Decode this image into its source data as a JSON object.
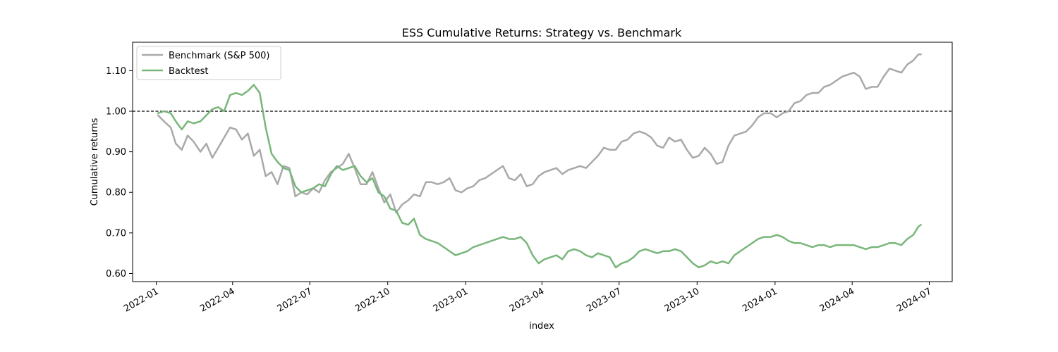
{
  "chart_data": {
    "type": "line",
    "title": "ESS Cumulative Returns: Strategy vs. Benchmark",
    "xlabel": "index",
    "ylabel": "Cumulative returns",
    "xlim": [
      "2021-12-04",
      "2024-07-28"
    ],
    "ylim": [
      0.58,
      1.17
    ],
    "x_ticks": [
      "2022-01",
      "2022-04",
      "2022-07",
      "2022-10",
      "2023-01",
      "2023-04",
      "2023-07",
      "2023-10",
      "2024-01",
      "2024-04",
      "2024-07"
    ],
    "x_tick_dates": [
      "2022-01-01",
      "2022-04-01",
      "2022-07-01",
      "2022-10-01",
      "2023-01-01",
      "2023-04-01",
      "2023-07-01",
      "2023-10-01",
      "2024-01-01",
      "2024-04-01",
      "2024-07-01"
    ],
    "y_ticks": [
      "0.60",
      "0.70",
      "0.80",
      "0.90",
      "1.00",
      "1.10"
    ],
    "y_tick_values": [
      0.6,
      0.7,
      0.8,
      0.9,
      1.0,
      1.1
    ],
    "grid": false,
    "legend_position": "upper-left",
    "reference_line": {
      "y": 1.0,
      "style": "dashed",
      "color": "#000000"
    },
    "series": [
      {
        "name": "Benchmark (S&P 500)",
        "color": "#a9a9a9",
        "points": [
          [
            "2022-01-03",
            0.99
          ],
          [
            "2022-01-10",
            0.975
          ],
          [
            "2022-01-18",
            0.96
          ],
          [
            "2022-01-24",
            0.92
          ],
          [
            "2022-01-31",
            0.905
          ],
          [
            "2022-02-07",
            0.94
          ],
          [
            "2022-02-14",
            0.925
          ],
          [
            "2022-02-22",
            0.9
          ],
          [
            "2022-03-01",
            0.92
          ],
          [
            "2022-03-08",
            0.885
          ],
          [
            "2022-03-15",
            0.91
          ],
          [
            "2022-03-22",
            0.935
          ],
          [
            "2022-03-29",
            0.96
          ],
          [
            "2022-04-05",
            0.955
          ],
          [
            "2022-04-12",
            0.93
          ],
          [
            "2022-04-19",
            0.945
          ],
          [
            "2022-04-26",
            0.89
          ],
          [
            "2022-05-03",
            0.905
          ],
          [
            "2022-05-10",
            0.84
          ],
          [
            "2022-05-17",
            0.85
          ],
          [
            "2022-05-24",
            0.82
          ],
          [
            "2022-05-31",
            0.865
          ],
          [
            "2022-06-07",
            0.86
          ],
          [
            "2022-06-14",
            0.79
          ],
          [
            "2022-06-21",
            0.8
          ],
          [
            "2022-06-28",
            0.795
          ],
          [
            "2022-07-05",
            0.81
          ],
          [
            "2022-07-12",
            0.8
          ],
          [
            "2022-07-19",
            0.83
          ],
          [
            "2022-07-26",
            0.85
          ],
          [
            "2022-08-02",
            0.86
          ],
          [
            "2022-08-09",
            0.87
          ],
          [
            "2022-08-16",
            0.895
          ],
          [
            "2022-08-23",
            0.86
          ],
          [
            "2022-08-30",
            0.82
          ],
          [
            "2022-09-06",
            0.82
          ],
          [
            "2022-09-13",
            0.85
          ],
          [
            "2022-09-20",
            0.81
          ],
          [
            "2022-09-27",
            0.775
          ],
          [
            "2022-10-04",
            0.795
          ],
          [
            "2022-10-11",
            0.75
          ],
          [
            "2022-10-18",
            0.77
          ],
          [
            "2022-10-25",
            0.78
          ],
          [
            "2022-11-01",
            0.795
          ],
          [
            "2022-11-08",
            0.79
          ],
          [
            "2022-11-15",
            0.825
          ],
          [
            "2022-11-22",
            0.825
          ],
          [
            "2022-11-29",
            0.82
          ],
          [
            "2022-12-06",
            0.825
          ],
          [
            "2022-12-13",
            0.835
          ],
          [
            "2022-12-20",
            0.805
          ],
          [
            "2022-12-27",
            0.8
          ],
          [
            "2023-01-03",
            0.81
          ],
          [
            "2023-01-10",
            0.815
          ],
          [
            "2023-01-17",
            0.83
          ],
          [
            "2023-01-24",
            0.835
          ],
          [
            "2023-01-31",
            0.845
          ],
          [
            "2023-02-07",
            0.855
          ],
          [
            "2023-02-14",
            0.865
          ],
          [
            "2023-02-21",
            0.835
          ],
          [
            "2023-02-28",
            0.83
          ],
          [
            "2023-03-07",
            0.845
          ],
          [
            "2023-03-14",
            0.815
          ],
          [
            "2023-03-21",
            0.82
          ],
          [
            "2023-03-28",
            0.84
          ],
          [
            "2023-04-04",
            0.85
          ],
          [
            "2023-04-11",
            0.855
          ],
          [
            "2023-04-18",
            0.86
          ],
          [
            "2023-04-25",
            0.845
          ],
          [
            "2023-05-02",
            0.855
          ],
          [
            "2023-05-09",
            0.86
          ],
          [
            "2023-05-16",
            0.865
          ],
          [
            "2023-05-23",
            0.86
          ],
          [
            "2023-05-30",
            0.875
          ],
          [
            "2023-06-06",
            0.89
          ],
          [
            "2023-06-13",
            0.91
          ],
          [
            "2023-06-20",
            0.905
          ],
          [
            "2023-06-27",
            0.905
          ],
          [
            "2023-07-04",
            0.925
          ],
          [
            "2023-07-11",
            0.93
          ],
          [
            "2023-07-18",
            0.945
          ],
          [
            "2023-07-25",
            0.95
          ],
          [
            "2023-08-01",
            0.945
          ],
          [
            "2023-08-08",
            0.935
          ],
          [
            "2023-08-15",
            0.915
          ],
          [
            "2023-08-22",
            0.91
          ],
          [
            "2023-08-29",
            0.935
          ],
          [
            "2023-09-05",
            0.925
          ],
          [
            "2023-09-12",
            0.93
          ],
          [
            "2023-09-19",
            0.905
          ],
          [
            "2023-09-26",
            0.885
          ],
          [
            "2023-10-03",
            0.89
          ],
          [
            "2023-10-10",
            0.91
          ],
          [
            "2023-10-17",
            0.895
          ],
          [
            "2023-10-24",
            0.87
          ],
          [
            "2023-10-31",
            0.875
          ],
          [
            "2023-11-07",
            0.915
          ],
          [
            "2023-11-14",
            0.94
          ],
          [
            "2023-11-21",
            0.945
          ],
          [
            "2023-11-28",
            0.95
          ],
          [
            "2023-12-05",
            0.965
          ],
          [
            "2023-12-12",
            0.985
          ],
          [
            "2023-12-19",
            0.995
          ],
          [
            "2023-12-27",
            0.995
          ],
          [
            "2024-01-03",
            0.985
          ],
          [
            "2024-01-10",
            0.995
          ],
          [
            "2024-01-17",
            1.0
          ],
          [
            "2024-01-24",
            1.02
          ],
          [
            "2024-01-31",
            1.025
          ],
          [
            "2024-02-07",
            1.04
          ],
          [
            "2024-02-14",
            1.045
          ],
          [
            "2024-02-21",
            1.045
          ],
          [
            "2024-02-28",
            1.06
          ],
          [
            "2024-03-06",
            1.065
          ],
          [
            "2024-03-13",
            1.075
          ],
          [
            "2024-03-20",
            1.085
          ],
          [
            "2024-03-27",
            1.09
          ],
          [
            "2024-04-03",
            1.095
          ],
          [
            "2024-04-10",
            1.085
          ],
          [
            "2024-04-17",
            1.055
          ],
          [
            "2024-04-24",
            1.06
          ],
          [
            "2024-05-01",
            1.06
          ],
          [
            "2024-05-08",
            1.085
          ],
          [
            "2024-05-15",
            1.105
          ],
          [
            "2024-05-22",
            1.1
          ],
          [
            "2024-05-29",
            1.095
          ],
          [
            "2024-06-05",
            1.115
          ],
          [
            "2024-06-12",
            1.125
          ],
          [
            "2024-06-18",
            1.14
          ],
          [
            "2024-06-21",
            1.14
          ]
        ]
      },
      {
        "name": "Backtest",
        "color": "#78b67a",
        "points": [
          [
            "2022-01-03",
            0.995
          ],
          [
            "2022-01-10",
            1.0
          ],
          [
            "2022-01-18",
            0.995
          ],
          [
            "2022-01-24",
            0.975
          ],
          [
            "2022-01-31",
            0.955
          ],
          [
            "2022-02-07",
            0.975
          ],
          [
            "2022-02-14",
            0.97
          ],
          [
            "2022-02-22",
            0.975
          ],
          [
            "2022-03-01",
            0.99
          ],
          [
            "2022-03-08",
            1.005
          ],
          [
            "2022-03-15",
            1.01
          ],
          [
            "2022-03-22",
            1.0
          ],
          [
            "2022-03-29",
            1.04
          ],
          [
            "2022-04-05",
            1.045
          ],
          [
            "2022-04-12",
            1.04
          ],
          [
            "2022-04-19",
            1.05
          ],
          [
            "2022-04-26",
            1.065
          ],
          [
            "2022-05-03",
            1.045
          ],
          [
            "2022-05-10",
            0.96
          ],
          [
            "2022-05-17",
            0.895
          ],
          [
            "2022-05-24",
            0.875
          ],
          [
            "2022-05-31",
            0.86
          ],
          [
            "2022-06-07",
            0.855
          ],
          [
            "2022-06-14",
            0.815
          ],
          [
            "2022-06-21",
            0.8
          ],
          [
            "2022-06-28",
            0.805
          ],
          [
            "2022-07-05",
            0.81
          ],
          [
            "2022-07-12",
            0.82
          ],
          [
            "2022-07-19",
            0.815
          ],
          [
            "2022-07-26",
            0.845
          ],
          [
            "2022-08-02",
            0.865
          ],
          [
            "2022-08-09",
            0.855
          ],
          [
            "2022-08-16",
            0.86
          ],
          [
            "2022-08-23",
            0.865
          ],
          [
            "2022-08-30",
            0.84
          ],
          [
            "2022-09-06",
            0.825
          ],
          [
            "2022-09-13",
            0.835
          ],
          [
            "2022-09-20",
            0.8
          ],
          [
            "2022-09-27",
            0.79
          ],
          [
            "2022-10-04",
            0.76
          ],
          [
            "2022-10-11",
            0.755
          ],
          [
            "2022-10-18",
            0.725
          ],
          [
            "2022-10-25",
            0.72
          ],
          [
            "2022-11-01",
            0.735
          ],
          [
            "2022-11-08",
            0.695
          ],
          [
            "2022-11-15",
            0.685
          ],
          [
            "2022-11-22",
            0.68
          ],
          [
            "2022-11-29",
            0.675
          ],
          [
            "2022-12-06",
            0.665
          ],
          [
            "2022-12-13",
            0.655
          ],
          [
            "2022-12-20",
            0.645
          ],
          [
            "2022-12-27",
            0.65
          ],
          [
            "2023-01-03",
            0.655
          ],
          [
            "2023-01-10",
            0.665
          ],
          [
            "2023-01-17",
            0.67
          ],
          [
            "2023-01-24",
            0.675
          ],
          [
            "2023-01-31",
            0.68
          ],
          [
            "2023-02-07",
            0.685
          ],
          [
            "2023-02-14",
            0.69
          ],
          [
            "2023-02-21",
            0.685
          ],
          [
            "2023-02-28",
            0.685
          ],
          [
            "2023-03-07",
            0.69
          ],
          [
            "2023-03-14",
            0.675
          ],
          [
            "2023-03-21",
            0.645
          ],
          [
            "2023-03-28",
            0.625
          ],
          [
            "2023-04-04",
            0.635
          ],
          [
            "2023-04-11",
            0.64
          ],
          [
            "2023-04-18",
            0.645
          ],
          [
            "2023-04-25",
            0.635
          ],
          [
            "2023-05-02",
            0.655
          ],
          [
            "2023-05-09",
            0.66
          ],
          [
            "2023-05-16",
            0.655
          ],
          [
            "2023-05-23",
            0.645
          ],
          [
            "2023-05-30",
            0.64
          ],
          [
            "2023-06-06",
            0.65
          ],
          [
            "2023-06-13",
            0.645
          ],
          [
            "2023-06-20",
            0.64
          ],
          [
            "2023-06-27",
            0.615
          ],
          [
            "2023-07-04",
            0.625
          ],
          [
            "2023-07-11",
            0.63
          ],
          [
            "2023-07-18",
            0.64
          ],
          [
            "2023-07-25",
            0.655
          ],
          [
            "2023-08-01",
            0.66
          ],
          [
            "2023-08-08",
            0.655
          ],
          [
            "2023-08-15",
            0.65
          ],
          [
            "2023-08-22",
            0.655
          ],
          [
            "2023-08-29",
            0.655
          ],
          [
            "2023-09-05",
            0.66
          ],
          [
            "2023-09-12",
            0.655
          ],
          [
            "2023-09-19",
            0.64
          ],
          [
            "2023-09-26",
            0.625
          ],
          [
            "2023-10-03",
            0.615
          ],
          [
            "2023-10-10",
            0.62
          ],
          [
            "2023-10-17",
            0.63
          ],
          [
            "2023-10-24",
            0.625
          ],
          [
            "2023-10-31",
            0.63
          ],
          [
            "2023-11-07",
            0.625
          ],
          [
            "2023-11-14",
            0.645
          ],
          [
            "2023-11-21",
            0.655
          ],
          [
            "2023-11-28",
            0.665
          ],
          [
            "2023-12-05",
            0.675
          ],
          [
            "2023-12-12",
            0.685
          ],
          [
            "2023-12-19",
            0.69
          ],
          [
            "2023-12-27",
            0.69
          ],
          [
            "2024-01-03",
            0.695
          ],
          [
            "2024-01-10",
            0.69
          ],
          [
            "2024-01-17",
            0.68
          ],
          [
            "2024-01-24",
            0.675
          ],
          [
            "2024-01-31",
            0.675
          ],
          [
            "2024-02-07",
            0.67
          ],
          [
            "2024-02-14",
            0.665
          ],
          [
            "2024-02-21",
            0.67
          ],
          [
            "2024-02-28",
            0.67
          ],
          [
            "2024-03-06",
            0.665
          ],
          [
            "2024-03-13",
            0.67
          ],
          [
            "2024-03-20",
            0.67
          ],
          [
            "2024-03-27",
            0.67
          ],
          [
            "2024-04-03",
            0.67
          ],
          [
            "2024-04-10",
            0.665
          ],
          [
            "2024-04-17",
            0.66
          ],
          [
            "2024-04-24",
            0.665
          ],
          [
            "2024-05-01",
            0.665
          ],
          [
            "2024-05-08",
            0.67
          ],
          [
            "2024-05-15",
            0.675
          ],
          [
            "2024-05-22",
            0.675
          ],
          [
            "2024-05-29",
            0.67
          ],
          [
            "2024-06-05",
            0.685
          ],
          [
            "2024-06-12",
            0.695
          ],
          [
            "2024-06-18",
            0.715
          ],
          [
            "2024-06-21",
            0.72
          ]
        ]
      }
    ]
  }
}
